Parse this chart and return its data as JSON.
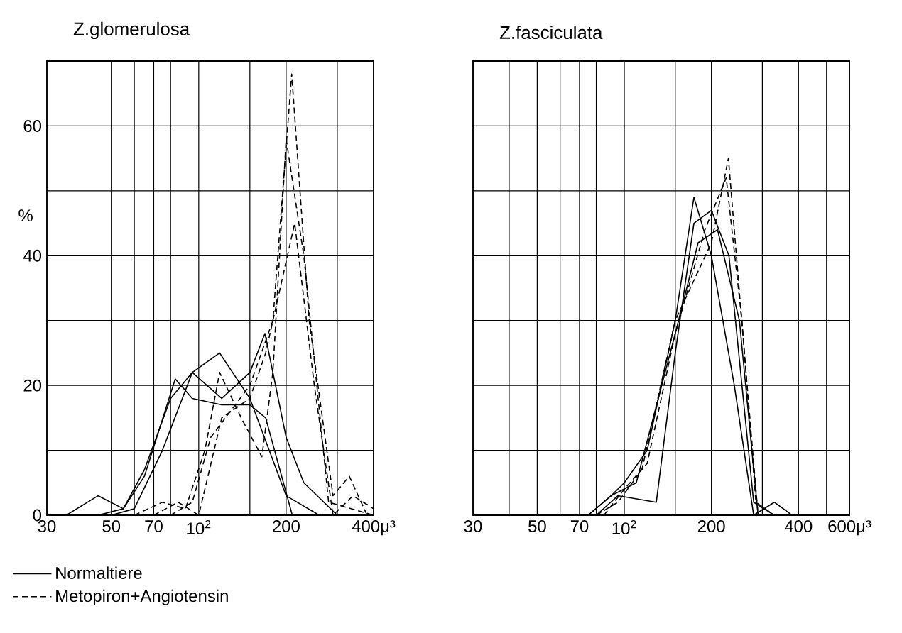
{
  "chart_data": [
    {
      "type": "line",
      "title": "Z.glomerulosa",
      "ylabel": "%",
      "log": "x",
      "grid": true,
      "legend": "bottom",
      "xlim": [
        30,
        400
      ],
      "ylim": [
        0,
        70
      ],
      "xticks": [
        30,
        50,
        {
          "value": 60,
          "label": null
        },
        70,
        {
          "value": 80,
          "label": null
        },
        {
          "value": 100,
          "label": "10$^{2}$"
        },
        {
          "value": 150,
          "label": null
        },
        200,
        {
          "value": 300,
          "label": null
        },
        {
          "value": 400,
          "label": "400μ³"
        }
      ],
      "yticks": [
        0,
        {
          "value": 10,
          "label": null
        },
        20,
        {
          "value": 30,
          "label": null
        },
        40,
        {
          "value": 50,
          "label": null
        },
        60
      ],
      "series": [
        {
          "name": "Normaltiere",
          "color": "#000000",
          "line_style": "solid",
          "x": [
            35,
            45,
            55,
            65,
            80,
            95,
            118,
            150,
            200,
            260
          ],
          "values": [
            0,
            3,
            1,
            7,
            18,
            22,
            25,
            18,
            3,
            0
          ]
        },
        {
          "color": "#000000",
          "line_style": "solid",
          "x": [
            45,
            55,
            65,
            83,
            95,
            120,
            150,
            170,
            210
          ],
          "values": [
            0,
            1,
            6,
            21,
            18,
            17,
            17,
            15,
            0
          ]
        },
        {
          "color": "#000000",
          "line_style": "solid",
          "x": [
            50,
            60,
            75,
            95,
            120,
            150,
            169,
            200,
            230,
            300
          ],
          "values": [
            0,
            1,
            10,
            22,
            18,
            22,
            28,
            12,
            5,
            0
          ]
        },
        {
          "name": "Metopiron+Angiotensin",
          "color": "#000000",
          "line_style": "dashed",
          "x": [
            80,
            95,
            110,
            150,
            180,
            209,
            240,
            290,
            330,
            380
          ],
          "values": [
            0,
            2,
            12,
            20,
            30,
            68,
            30,
            3,
            6,
            0
          ]
        },
        {
          "color": "#000000",
          "line_style": "dashed",
          "x": [
            70,
            85,
            100,
            120,
            150,
            170,
            214,
            250,
            290,
            340,
            400
          ],
          "values": [
            0,
            2,
            0,
            15,
            18,
            25,
            45,
            20,
            0,
            3,
            1
          ]
        },
        {
          "color": "#000000",
          "line_style": "dashed",
          "x": [
            60,
            75,
            90,
            105,
            118,
            140,
            165,
            180,
            200,
            230,
            280,
            400
          ],
          "values": [
            0,
            2,
            1,
            10,
            22,
            15,
            9,
            22,
            58,
            40,
            2,
            0
          ]
        }
      ]
    },
    {
      "type": "line",
      "title": "Z.fasciculata",
      "log": "x",
      "grid": true,
      "tick_labels": "x",
      "xlim": [
        30,
        600
      ],
      "ylim": [
        0,
        70
      ],
      "xticks": [
        30,
        {
          "value": 40,
          "label": null
        },
        50,
        {
          "value": 60,
          "label": null
        },
        70,
        {
          "value": 80,
          "label": null
        },
        {
          "value": 100,
          "label": "10$^{2}$"
        },
        {
          "value": 150,
          "label": null
        },
        200,
        {
          "value": 300,
          "label": null
        },
        400,
        {
          "value": 500,
          "label": null
        },
        {
          "value": 600,
          "label": "600μ³"
        }
      ],
      "yticks": [
        {
          "value": 0,
          "label": null
        },
        {
          "value": 10,
          "label": null
        },
        {
          "value": 20,
          "label": null
        },
        {
          "value": 30,
          "label": null
        },
        {
          "value": 40,
          "label": null
        },
        {
          "value": 50,
          "label": null
        },
        {
          "value": 60,
          "label": null
        }
      ],
      "series": [
        {
          "color": "#000000",
          "line_style": "solid",
          "x": [
            75,
            90,
            100,
            120,
            150,
            174,
            200,
            240,
            280,
            330,
            380
          ],
          "values": [
            0,
            3,
            5,
            10,
            30,
            49,
            40,
            20,
            0,
            2,
            0
          ]
        },
        {
          "color": "#000000",
          "line_style": "solid",
          "x": [
            80,
            95,
            129,
            150,
            174,
            200,
            230,
            280,
            330
          ],
          "values": [
            0,
            3,
            2,
            25,
            45,
            47,
            40,
            2,
            0
          ]
        },
        {
          "color": "#000000",
          "line_style": "solid",
          "x": [
            75,
            90,
            110,
            150,
            180,
            210,
            250,
            290
          ],
          "values": [
            0,
            3,
            5,
            28,
            42,
            44,
            30,
            0
          ]
        },
        {
          "color": "#000000",
          "line_style": "dashed",
          "x": [
            80,
            95,
            115,
            150,
            200,
            229,
            260,
            290
          ],
          "values": [
            0,
            2,
            7,
            30,
            42,
            55,
            25,
            0
          ]
        },
        {
          "color": "#000000",
          "line_style": "dashed",
          "x": [
            85,
            100,
            120,
            150,
            190,
            225,
            255,
            285,
            330
          ],
          "values": [
            0,
            4,
            8,
            28,
            44,
            52,
            30,
            2,
            0
          ]
        }
      ]
    }
  ]
}
